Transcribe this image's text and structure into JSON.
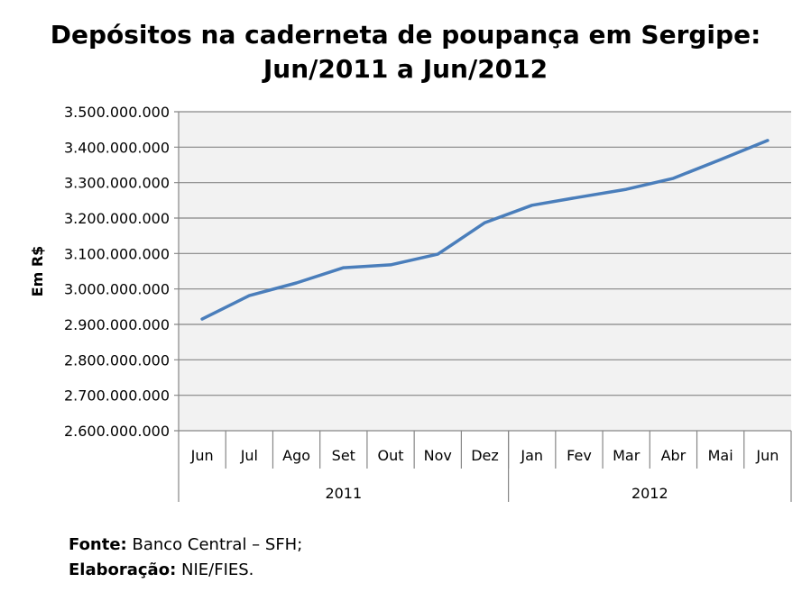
{
  "chart_data": {
    "type": "line",
    "title_line1": "Depósitos na caderneta de poupança em Sergipe:",
    "title_line2": "Jun/2011 a Jun/2012",
    "ylabel": "Em R$",
    "xlabel": "",
    "ylim": [
      2600000000,
      3500000000
    ],
    "ytick_step": 100000000,
    "yticks": [
      "2.600.000.000",
      "2.700.000.000",
      "2.800.000.000",
      "2.900.000.000",
      "3.000.000.000",
      "3.100.000.000",
      "3.200.000.000",
      "3.300.000.000",
      "3.400.000.000",
      "3.500.000.000"
    ],
    "categories": [
      "Jun",
      "Jul",
      "Ago",
      "Set",
      "Out",
      "Nov",
      "Dez",
      "Jan",
      "Fev",
      "Mar",
      "Abr",
      "Mai",
      "Jun"
    ],
    "groups": [
      {
        "label": "2011",
        "count": 7
      },
      {
        "label": "2012",
        "count": 6
      }
    ],
    "series": [
      {
        "name": "Depósitos",
        "color": "#4A7EBB",
        "values": [
          2915000000,
          2981000000,
          3017000000,
          3060000000,
          3068000000,
          3098000000,
          3187000000,
          3236000000,
          3259000000,
          3281000000,
          3312000000,
          3365000000,
          3419000000
        ]
      }
    ],
    "grid": true,
    "legend": "none",
    "plot_background": "#F2F2F2"
  },
  "footer": {
    "source_label": "Fonte:",
    "source_value": " Banco Central – SFH;",
    "elab_label": "Elaboração:",
    "elab_value": " NIE/FIES."
  }
}
